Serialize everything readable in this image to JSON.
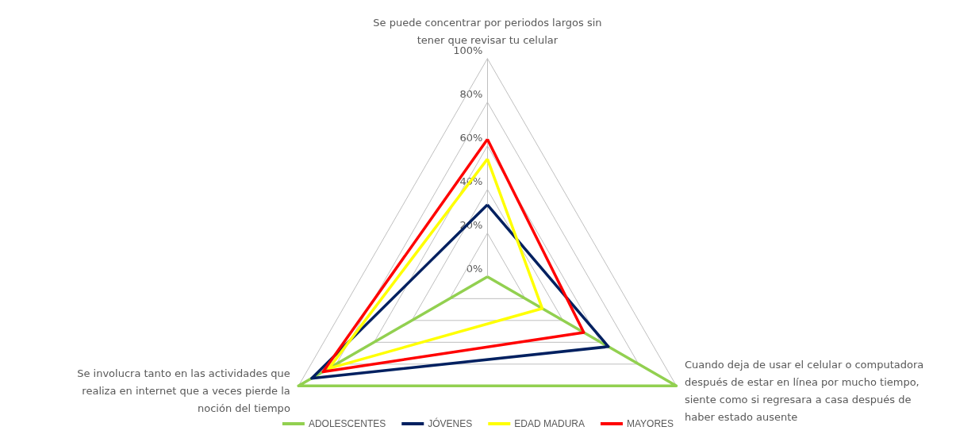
{
  "chart_data": {
    "type": "radar",
    "categories": [
      "Se puede concentrar por periodos largos sin tener que revisar tu celular",
      "Cuando deja de usar el celular o computadora después de estar en línea por mucho tiempo, siente como si regresara a casa después de haber estado ausente",
      "Se involucra tanto en las actividades que realiza en internet que a veces pierde la noción del tiempo"
    ],
    "series": [
      {
        "name": "ADOLESCENTES",
        "color": "#92d050",
        "values": [
          0,
          100,
          100
        ]
      },
      {
        "name": "JÓVENES",
        "color": "#002060",
        "values": [
          33,
          64,
          93
        ]
      },
      {
        "name": "EDAD MADURA",
        "color": "#ffff00",
        "values": [
          54,
          29,
          84
        ]
      },
      {
        "name": "MAYORES",
        "color": "#ff0000",
        "values": [
          63,
          51,
          87
        ]
      }
    ],
    "ylim": [
      0,
      100
    ],
    "yticks": [
      {
        "value": 0,
        "label": "0%"
      },
      {
        "value": 20,
        "label": "20%"
      },
      {
        "value": 40,
        "label": "40%"
      },
      {
        "value": 60,
        "label": "60%"
      },
      {
        "value": 80,
        "label": "80%"
      },
      {
        "value": 100,
        "label": "100%"
      }
    ],
    "grid": true,
    "legend": "bottom",
    "marker": "none",
    "line_style": "solid"
  }
}
